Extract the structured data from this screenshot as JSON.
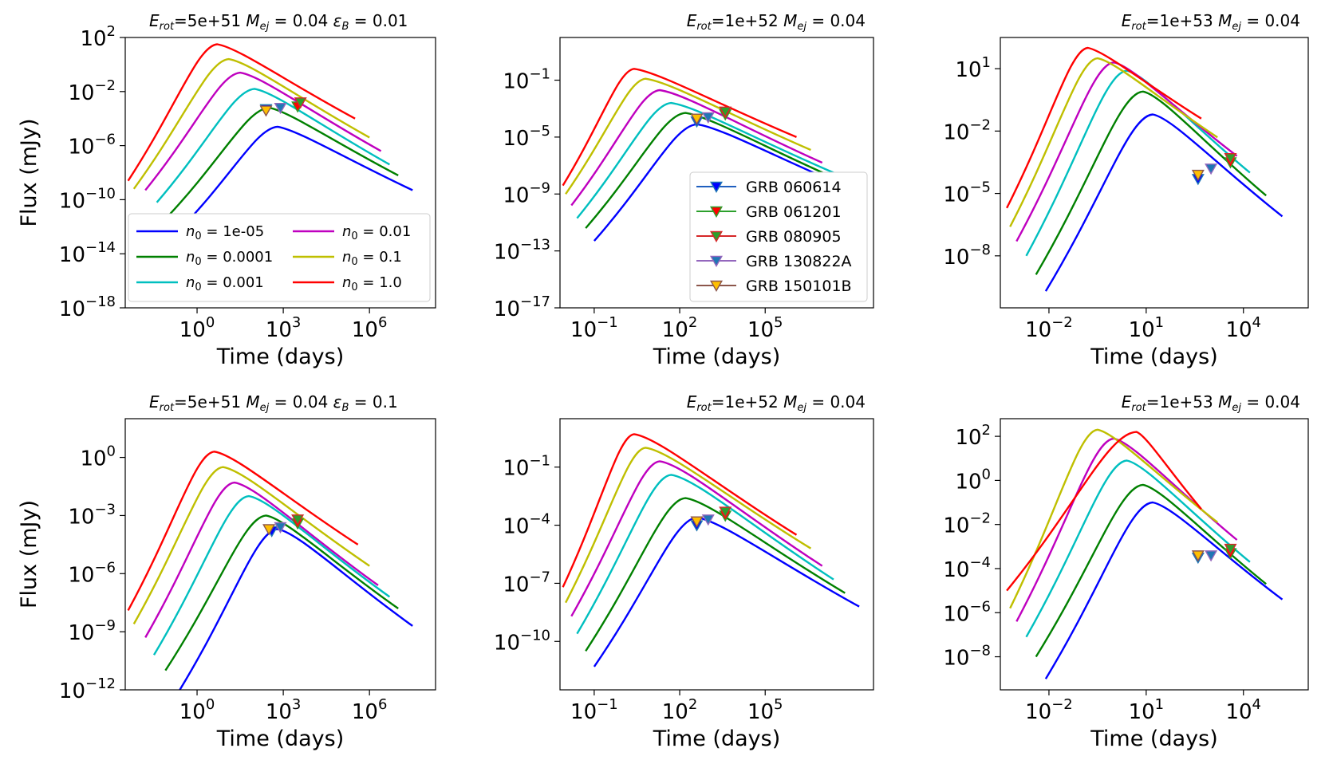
{
  "figure": {
    "xlabel": "Time (days)",
    "ylabel": "Flux (mJy)"
  },
  "series_meta": [
    {
      "name": "n0 = 1e-05",
      "label": "= 1e-05",
      "color": "#0000ff"
    },
    {
      "name": "n0 = 0.0001",
      "label": "= 0.0001",
      "color": "#008000"
    },
    {
      "name": "n0 = 0.001",
      "label": "= 0.001",
      "color": "#00bfbf"
    },
    {
      "name": "n0 = 0.01",
      "label": "= 0.01",
      "color": "#bf00bf"
    },
    {
      "name": "n0 = 0.1",
      "label": "= 0.1",
      "color": "#bfbf00"
    },
    {
      "name": "n0 = 1.0",
      "label": "= 1.0",
      "color": "#ff0000"
    }
  ],
  "grb_legend": [
    {
      "name": "GRB 060614",
      "line": "#1f5fbf",
      "face": "#0000ff",
      "edge": "#1f77b4"
    },
    {
      "name": "GRB 061201",
      "line": "#2ca02c",
      "face": "#ff0000",
      "edge": "#2ca02c"
    },
    {
      "name": "GRB 080905",
      "line": "#d62728",
      "face": "#2ca02c",
      "edge": "#d62728"
    },
    {
      "name": "GRB 130822A",
      "line": "#9467bd",
      "face": "#1f77b4",
      "edge": "#9467bd"
    },
    {
      "name": "GRB 150101B",
      "line": "#8c564b",
      "face": "#ffbf00",
      "edge": "#8c564b"
    }
  ],
  "chart_data": [
    {
      "type": "line",
      "panel": "top-left",
      "title": {
        "pre": "E",
        "sub1": "rot",
        "mid1": "=5e+51 M",
        "sub2": "ej",
        "mid2": " = 0.04 ε",
        "sub3": "B",
        "post": " = 0.01"
      },
      "xlim": [
        -2.5,
        8.3
      ],
      "ylim": [
        -18,
        2
      ],
      "xticks": [
        0,
        3,
        6
      ],
      "yticks": [
        -18,
        -14,
        -10,
        -6,
        -2,
        2
      ],
      "legend": "n0",
      "legend_position": "lower-left",
      "series": [
        {
          "name": "n0 = 1e-05",
          "points": [
            [
              -0.5,
              -12.0
            ],
            [
              2.8,
              -4.6
            ],
            [
              7.5,
              -9.3
            ]
          ]
        },
        {
          "name": "n0 = 0.0001",
          "points": [
            [
              -1.0,
              -11.2
            ],
            [
              2.5,
              -3.2
            ],
            [
              7.0,
              -8.2
            ]
          ]
        },
        {
          "name": "n0 = 0.001",
          "points": [
            [
              -1.4,
              -10.2
            ],
            [
              2.0,
              -1.8
            ],
            [
              6.7,
              -7.4
            ]
          ]
        },
        {
          "name": "n0 = 0.01",
          "points": [
            [
              -1.8,
              -9.3
            ],
            [
              1.5,
              -0.6
            ],
            [
              6.4,
              -6.4
            ]
          ]
        },
        {
          "name": "n0 = 0.1",
          "points": [
            [
              -2.2,
              -9.2
            ],
            [
              1.1,
              0.4
            ],
            [
              6.0,
              -5.4
            ]
          ]
        },
        {
          "name": "n0 = 1.0",
          "points": [
            [
              -2.4,
              -8.6
            ],
            [
              0.7,
              1.5
            ],
            [
              5.5,
              -4.0
            ]
          ]
        }
      ],
      "observations": [
        {
          "grb": "GRB 060614",
          "x": 2.4,
          "y": -3.3
        },
        {
          "grb": "GRB 061201",
          "x": 3.5,
          "y": -3.1
        },
        {
          "grb": "GRB 080905",
          "x": 3.6,
          "y": -2.8
        },
        {
          "grb": "GRB 130822A",
          "x": 2.9,
          "y": -3.2
        },
        {
          "grb": "GRB 150101B",
          "x": 2.4,
          "y": -3.4
        }
      ]
    },
    {
      "type": "line",
      "panel": "top-middle",
      "title": {
        "pre": "E",
        "sub1": "rot",
        "mid1": "=1e+52 M",
        "sub2": "ej",
        "mid2": " = 0.04"
      },
      "xlim": [
        -2.2,
        8.8
      ],
      "ylim": [
        -17,
        2
      ],
      "xticks": [
        -1,
        2,
        5
      ],
      "yticks": [
        -17,
        -13,
        -9,
        -5,
        -1
      ],
      "legend": "grb",
      "legend_position": "lower-right",
      "series": [
        {
          "name": "n0 = 1e-05",
          "points": [
            [
              -1.0,
              -12.3
            ],
            [
              2.6,
              -4.1
            ],
            [
              8.3,
              -8.9
            ]
          ]
        },
        {
          "name": "n0 = 0.0001",
          "points": [
            [
              -1.3,
              -11.4
            ],
            [
              2.2,
              -3.3
            ],
            [
              7.8,
              -8.2
            ]
          ]
        },
        {
          "name": "n0 = 0.001",
          "points": [
            [
              -1.6,
              -10.7
            ],
            [
              1.7,
              -2.6
            ],
            [
              7.4,
              -7.5
            ]
          ]
        },
        {
          "name": "n0 = 0.01",
          "points": [
            [
              -1.8,
              -9.8
            ],
            [
              1.3,
              -1.7
            ],
            [
              7.0,
              -6.8
            ]
          ]
        },
        {
          "name": "n0 = 0.1",
          "points": [
            [
              -2.0,
              -9.0
            ],
            [
              0.8,
              -0.9
            ],
            [
              6.6,
              -5.9
            ]
          ]
        },
        {
          "name": "n0 = 1.0",
          "points": [
            [
              -2.1,
              -8.4
            ],
            [
              0.4,
              -0.2
            ],
            [
              6.1,
              -5.0
            ]
          ]
        }
      ],
      "observations": [
        {
          "grb": "GRB 060614",
          "x": 2.6,
          "y": -3.9
        },
        {
          "grb": "GRB 061201",
          "x": 3.6,
          "y": -3.4
        },
        {
          "grb": "GRB 080905",
          "x": 3.6,
          "y": -3.2
        },
        {
          "grb": "GRB 130822A",
          "x": 3.0,
          "y": -3.6
        },
        {
          "grb": "GRB 150101B",
          "x": 2.6,
          "y": -3.7
        }
      ]
    },
    {
      "type": "line",
      "panel": "top-right",
      "title": {
        "pre": "E",
        "sub1": "rot",
        "mid1": "=1e+53 M",
        "sub2": "ej",
        "mid2": " = 0.04"
      },
      "xlim": [
        -3.5,
        6.0
      ],
      "ylim": [
        -10.5,
        2.5
      ],
      "xticks": [
        -2,
        1,
        4
      ],
      "yticks": [
        -8,
        -5,
        -2,
        1
      ],
      "legend": "none",
      "series": [
        {
          "name": "n0 = 1e-05",
          "points": [
            [
              -2.1,
              -9.7
            ],
            [
              1.2,
              -1.2
            ],
            [
              5.2,
              -6.1
            ]
          ]
        },
        {
          "name": "n0 = 0.0001",
          "points": [
            [
              -2.4,
              -8.9
            ],
            [
              0.9,
              -0.1
            ],
            [
              4.7,
              -5.1
            ]
          ]
        },
        {
          "name": "n0 = 0.001",
          "points": [
            [
              -2.7,
              -8.0
            ],
            [
              0.4,
              0.9
            ],
            [
              4.2,
              -4.0
            ]
          ]
        },
        {
          "name": "n0 = 0.01",
          "points": [
            [
              -3.0,
              -7.3
            ],
            [
              0.0,
              1.3
            ],
            [
              3.8,
              -3.2
            ]
          ]
        },
        {
          "name": "n0 = 0.1",
          "points": [
            [
              -3.2,
              -6.6
            ],
            [
              -0.5,
              1.5
            ],
            [
              3.2,
              -2.3
            ]
          ]
        },
        {
          "name": "n0 = 1.0",
          "points": [
            [
              -3.3,
              -5.7
            ],
            [
              -0.8,
              2.0
            ],
            [
              2.7,
              -1.4
            ]
          ]
        }
      ],
      "observations": [
        {
          "grb": "GRB 060614",
          "x": 2.6,
          "y": -4.3
        },
        {
          "grb": "GRB 061201",
          "x": 3.6,
          "y": -3.5
        },
        {
          "grb": "GRB 080905",
          "x": 3.6,
          "y": -3.3
        },
        {
          "grb": "GRB 130822A",
          "x": 3.0,
          "y": -3.8
        },
        {
          "grb": "GRB 150101B",
          "x": 2.6,
          "y": -4.1
        }
      ]
    },
    {
      "type": "line",
      "panel": "bottom-left",
      "title": {
        "pre": "E",
        "sub1": "rot",
        "mid1": "=5e+51 M",
        "sub2": "ej",
        "mid2": " = 0.04 ε",
        "sub3": "B",
        "post": " = 0.1"
      },
      "xlim": [
        -2.5,
        8.3
      ],
      "ylim": [
        -12,
        2
      ],
      "xticks": [
        0,
        3,
        6
      ],
      "yticks": [
        -12,
        -9,
        -6,
        -3,
        0
      ],
      "legend": "none",
      "series": [
        {
          "name": "n0 = 1e-05",
          "points": [
            [
              -0.6,
              -12.0
            ],
            [
              2.8,
              -3.7
            ],
            [
              7.5,
              -8.7
            ]
          ]
        },
        {
          "name": "n0 = 0.0001",
          "points": [
            [
              -1.1,
              -11.0
            ],
            [
              2.4,
              -3.0
            ],
            [
              7.0,
              -7.8
            ]
          ]
        },
        {
          "name": "n0 = 0.001",
          "points": [
            [
              -1.5,
              -10.2
            ],
            [
              1.8,
              -2.0
            ],
            [
              6.7,
              -7.2
            ]
          ]
        },
        {
          "name": "n0 = 0.01",
          "points": [
            [
              -1.8,
              -9.3
            ],
            [
              1.3,
              -1.3
            ],
            [
              6.3,
              -6.6
            ]
          ]
        },
        {
          "name": "n0 = 0.1",
          "points": [
            [
              -2.2,
              -8.6
            ],
            [
              0.9,
              -0.5
            ],
            [
              6.0,
              -5.6
            ]
          ]
        },
        {
          "name": "n0 = 1.0",
          "points": [
            [
              -2.4,
              -7.9
            ],
            [
              0.6,
              0.3
            ],
            [
              5.6,
              -4.5
            ]
          ]
        }
      ],
      "observations": [
        {
          "grb": "GRB 060614",
          "x": 2.6,
          "y": -3.8
        },
        {
          "grb": "GRB 061201",
          "x": 3.5,
          "y": -3.4
        },
        {
          "grb": "GRB 080905",
          "x": 3.5,
          "y": -3.2
        },
        {
          "grb": "GRB 130822A",
          "x": 2.9,
          "y": -3.6
        },
        {
          "grb": "GRB 150101B",
          "x": 2.5,
          "y": -3.7
        }
      ]
    },
    {
      "type": "line",
      "panel": "bottom-middle",
      "title": {
        "pre": "E",
        "sub1": "rot",
        "mid1": "=1e+52 M",
        "sub2": "ej",
        "mid2": " = 0.04"
      },
      "xlim": [
        -2.2,
        8.8
      ],
      "ylim": [
        -12.5,
        1.5
      ],
      "xticks": [
        -1,
        2,
        5
      ],
      "yticks": [
        -10,
        -7,
        -4,
        -1
      ],
      "legend": "none",
      "series": [
        {
          "name": "n0 = 1e-05",
          "points": [
            [
              -1.0,
              -11.3
            ],
            [
              2.6,
              -3.6
            ],
            [
              8.3,
              -8.2
            ]
          ]
        },
        {
          "name": "n0 = 0.0001",
          "points": [
            [
              -1.3,
              -10.5
            ],
            [
              2.2,
              -2.6
            ],
            [
              7.8,
              -7.5
            ]
          ]
        },
        {
          "name": "n0 = 0.001",
          "points": [
            [
              -1.6,
              -9.6
            ],
            [
              1.7,
              -1.4
            ],
            [
              7.4,
              -6.8
            ]
          ]
        },
        {
          "name": "n0 = 0.01",
          "points": [
            [
              -1.8,
              -8.7
            ],
            [
              1.3,
              -0.7
            ],
            [
              7.0,
              -6.1
            ]
          ]
        },
        {
          "name": "n0 = 0.1",
          "points": [
            [
              -2.0,
              -8.0
            ],
            [
              0.8,
              0.0
            ],
            [
              6.6,
              -5.2
            ]
          ]
        },
        {
          "name": "n0 = 1.0",
          "points": [
            [
              -2.1,
              -7.2
            ],
            [
              0.4,
              0.7
            ],
            [
              6.1,
              -4.5
            ]
          ]
        }
      ],
      "observations": [
        {
          "grb": "GRB 060614",
          "x": 2.6,
          "y": -4.0
        },
        {
          "grb": "GRB 061201",
          "x": 3.6,
          "y": -3.5
        },
        {
          "grb": "GRB 080905",
          "x": 3.6,
          "y": -3.3
        },
        {
          "grb": "GRB 130822A",
          "x": 3.0,
          "y": -3.7
        },
        {
          "grb": "GRB 150101B",
          "x": 2.6,
          "y": -3.8
        }
      ]
    },
    {
      "type": "line",
      "panel": "bottom-right",
      "title": {
        "pre": "E",
        "sub1": "rot",
        "mid1": "=1e+53 M",
        "sub2": "ej",
        "mid2": " = 0.04"
      },
      "xlim": [
        -3.5,
        6.0
      ],
      "ylim": [
        -9.5,
        2.8
      ],
      "xticks": [
        -2,
        1,
        4
      ],
      "yticks": [
        -8,
        -6,
        -4,
        -2,
        0,
        2
      ],
      "legend": "none",
      "series": [
        {
          "name": "n0 = 1e-05",
          "points": [
            [
              -2.1,
              -9.0
            ],
            [
              1.2,
              -1.0
            ],
            [
              5.2,
              -5.4
            ]
          ]
        },
        {
          "name": "n0 = 0.0001",
          "points": [
            [
              -2.4,
              -8.0
            ],
            [
              0.9,
              -0.2
            ],
            [
              4.7,
              -4.7
            ]
          ]
        },
        {
          "name": "n0 = 0.001",
          "points": [
            [
              -2.7,
              -7.1
            ],
            [
              0.4,
              0.9
            ],
            [
              4.2,
              -3.7
            ]
          ]
        },
        {
          "name": "n0 = 0.01",
          "points": [
            [
              -3.0,
              -6.4
            ],
            [
              0.0,
              1.9
            ],
            [
              3.8,
              -2.7
            ]
          ]
        },
        {
          "name": "n0 = 0.1",
          "points": [
            [
              -3.2,
              -5.8
            ],
            [
              -0.5,
              2.3
            ],
            [
              3.2,
              -1.9
            ]
          ]
        },
        {
          "name": "n0 = 1.0",
          "points": [
            [
              -3.3,
              -5.0
            ],
            [
              0.7,
              2.2
            ],
            [
              2.7,
              -1.3
            ]
          ]
        }
      ],
      "observations": [
        {
          "grb": "GRB 060614",
          "x": 2.6,
          "y": -3.5
        },
        {
          "grb": "GRB 061201",
          "x": 3.6,
          "y": -3.3
        },
        {
          "grb": "GRB 080905",
          "x": 3.6,
          "y": -3.1
        },
        {
          "grb": "GRB 130822A",
          "x": 3.0,
          "y": -3.4
        },
        {
          "grb": "GRB 150101B",
          "x": 2.6,
          "y": -3.4
        }
      ]
    }
  ]
}
